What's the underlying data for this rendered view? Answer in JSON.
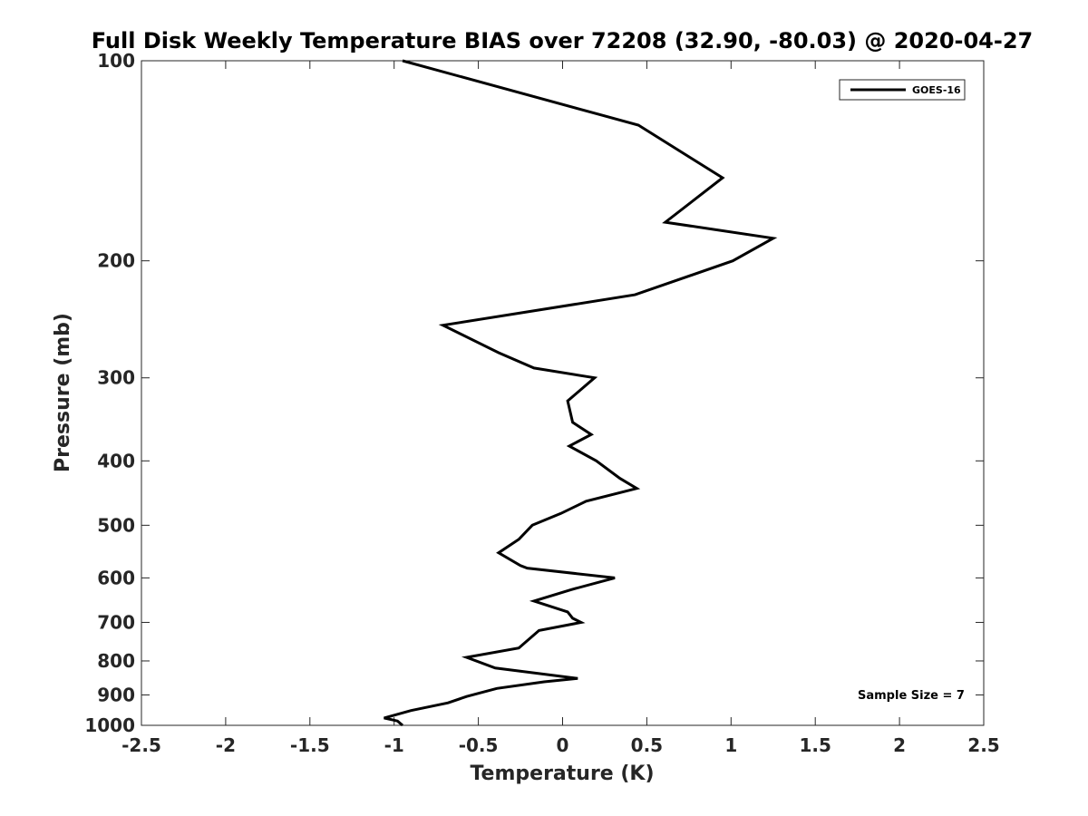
{
  "chart_data": {
    "type": "line",
    "title": "Full Disk Weekly Temperature BIAS over 72208 (32.90, -80.03) @ 2020-04-27",
    "xlabel": "Temperature (K)",
    "ylabel": "Pressure (mb)",
    "xlim": [
      -2.5,
      2.5
    ],
    "ylim": [
      100,
      1000
    ],
    "yscale": "log",
    "y_reversed": true,
    "grid": false,
    "legend_position": "top-right",
    "xticks": [
      -2.5,
      -2,
      -1.5,
      -1,
      -0.5,
      0,
      0.5,
      1,
      1.5,
      2,
      2.5
    ],
    "xtick_labels": [
      "-2.5",
      "-2",
      "-1.5",
      "-1",
      "-0.5",
      "0",
      "0.5",
      "1",
      "1.5",
      "2",
      "2.5"
    ],
    "yticks": [
      100,
      200,
      300,
      400,
      500,
      600,
      700,
      800,
      900,
      1000
    ],
    "ytick_labels": [
      "100",
      "200",
      "300",
      "400",
      "500",
      "600",
      "700",
      "800",
      "900",
      "1000"
    ],
    "series": [
      {
        "name": "GOES-16",
        "color": "#000000",
        "x": [
          -0.95,
          0.45,
          0.95,
          0.61,
          1.25,
          1.01,
          0.43,
          -0.71,
          -0.38,
          -0.17,
          0.19,
          0.03,
          0.06,
          0.17,
          0.04,
          0.2,
          0.34,
          0.44,
          0.14,
          -0.01,
          -0.18,
          -0.26,
          -0.38,
          -0.25,
          -0.21,
          0.31,
          0.05,
          -0.17,
          0.03,
          0.06,
          0.11,
          -0.14,
          -0.26,
          -0.57,
          -0.4,
          0.09,
          -0.11,
          -0.39,
          -0.57,
          -0.68,
          -0.9,
          -1.06,
          -0.98,
          -0.95
        ],
        "y": [
          100,
          125,
          150,
          175,
          185,
          200,
          225,
          250,
          275,
          290,
          300,
          325,
          350,
          365,
          380,
          400,
          425,
          440,
          460,
          480,
          500,
          525,
          550,
          575,
          580,
          600,
          625,
          650,
          675,
          690,
          700,
          720,
          765,
          790,
          820,
          850,
          860,
          880,
          905,
          925,
          950,
          975,
          985,
          1000
        ]
      }
    ],
    "annotation": "Sample Size = 7"
  }
}
